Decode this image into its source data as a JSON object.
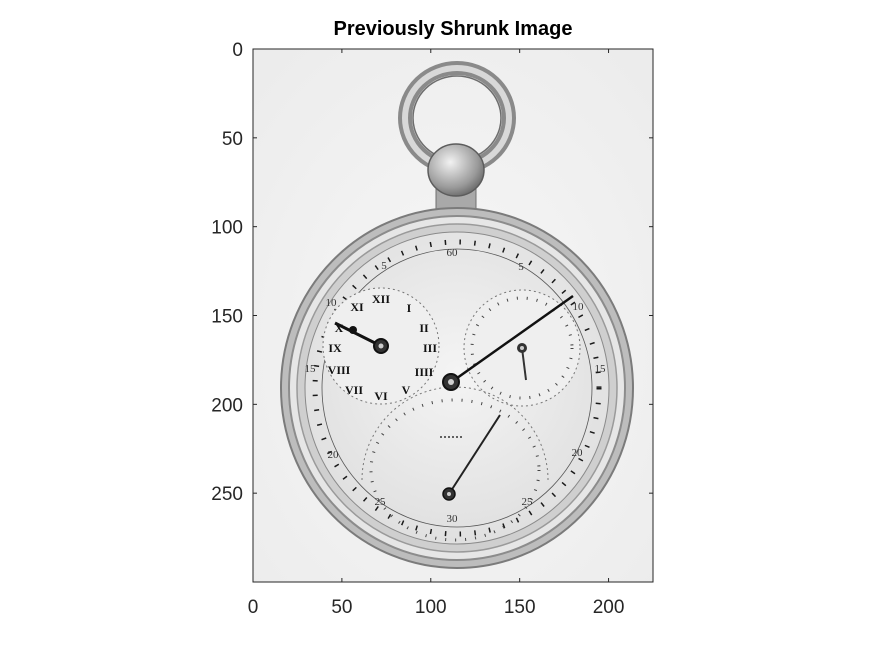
{
  "figure": {
    "title": "Previously Shrunk Image"
  },
  "axes": {
    "x_range": [
      0,
      225
    ],
    "y_range": [
      0,
      300
    ],
    "y_direction": "reversed",
    "x_ticks": [
      0,
      50,
      100,
      150,
      200
    ],
    "y_ticks": [
      0,
      50,
      100,
      150,
      200,
      250
    ],
    "x_tick_labels": [
      "0",
      "50",
      "100",
      "150",
      "200"
    ],
    "y_tick_labels": [
      "0",
      "50",
      "100",
      "150",
      "200",
      "250"
    ],
    "grid": false
  },
  "image": {
    "subject": "grayscale pocket watch",
    "dial_numerals_left": [
      "XII",
      "I",
      "II",
      "III",
      "IIII",
      "V",
      "VI",
      "VII",
      "VIII",
      "IX",
      "X",
      "XI"
    ]
  }
}
